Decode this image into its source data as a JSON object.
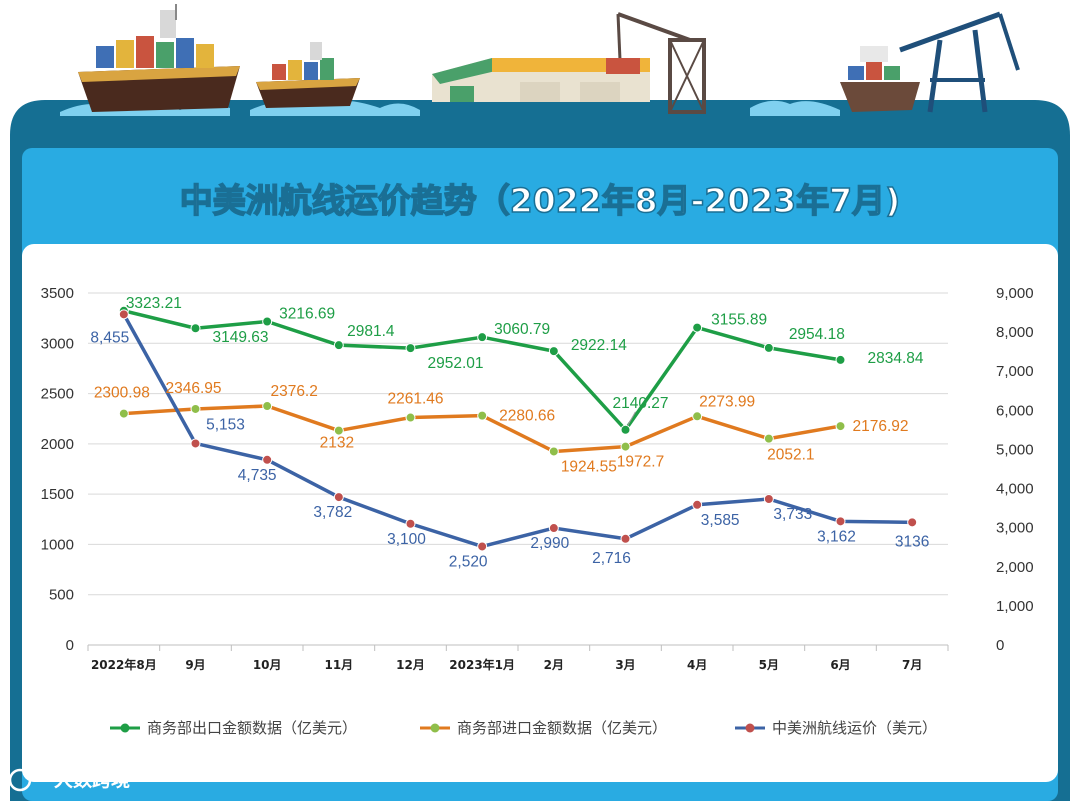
{
  "title": "中美洲航线运价趋势（2022年8月-2023年7月)",
  "watermark": "大数跨境",
  "colors": {
    "frame": "#156f93",
    "panel": "#29abe2",
    "export": "#1e9e46",
    "import": "#e07a1f",
    "freight": "#3c63a5",
    "import_marker": "#8fbe4a",
    "freight_marker": "#c0504d"
  },
  "chart_data": {
    "type": "line",
    "categories": [
      "2022年8月",
      "9月",
      "10月",
      "11月",
      "12月",
      "2023年1月",
      "2月",
      "3月",
      "4月",
      "5月",
      "6月",
      "7月"
    ],
    "y_left": {
      "ticks": [
        "0",
        "500",
        "1000",
        "1500",
        "2000",
        "2500",
        "3000",
        "3500"
      ],
      "ylim": [
        0,
        3500
      ]
    },
    "y_right": {
      "ticks": [
        "0",
        "1,000",
        "2,000",
        "3,000",
        "4,000",
        "5,000",
        "6,000",
        "7,000",
        "8,000",
        "9,000"
      ],
      "ylim": [
        0,
        9000
      ]
    },
    "grid": true,
    "legend_position": "bottom",
    "series": [
      {
        "name": "商务部出口金额数据（亿美元）",
        "axis": "left",
        "values": [
          3323.21,
          3149.63,
          3216.69,
          2981.4,
          2952.01,
          3060.79,
          2922.14,
          2140.27,
          3155.89,
          2954.18,
          2834.84,
          null
        ],
        "labels": [
          "3323.21",
          "3149.63",
          "3216.69",
          "2981.4",
          "2952.01",
          "3060.79",
          "2922.14",
          "2140.27",
          "3155.89",
          "2954.18",
          "2834.84",
          ""
        ]
      },
      {
        "name": "商务部进口金额数据（亿美元）",
        "axis": "left",
        "values": [
          2300.98,
          2346.95,
          2376.2,
          2132,
          2261.46,
          2280.66,
          1924.55,
          1972.7,
          2273.99,
          2052.1,
          2176.92,
          null
        ],
        "labels": [
          "2300.98",
          "2346.95",
          "2376.2",
          "2132",
          "2261.46",
          "2280.66",
          "1924.55",
          "1972.7",
          "2273.99",
          "2052.1",
          "2176.92",
          ""
        ]
      },
      {
        "name": "中美洲航线运价（美元）",
        "axis": "right",
        "values": [
          8455,
          5153,
          4735,
          3782,
          3100,
          2520,
          2990,
          2716,
          3585,
          3733,
          3162,
          3136
        ],
        "labels": [
          "8,455",
          "5,153",
          "4,735",
          "3,782",
          "3,100",
          "2,520",
          "2,990",
          "2,716",
          "3,585",
          "3,733",
          "3,162",
          "3136"
        ]
      }
    ]
  }
}
